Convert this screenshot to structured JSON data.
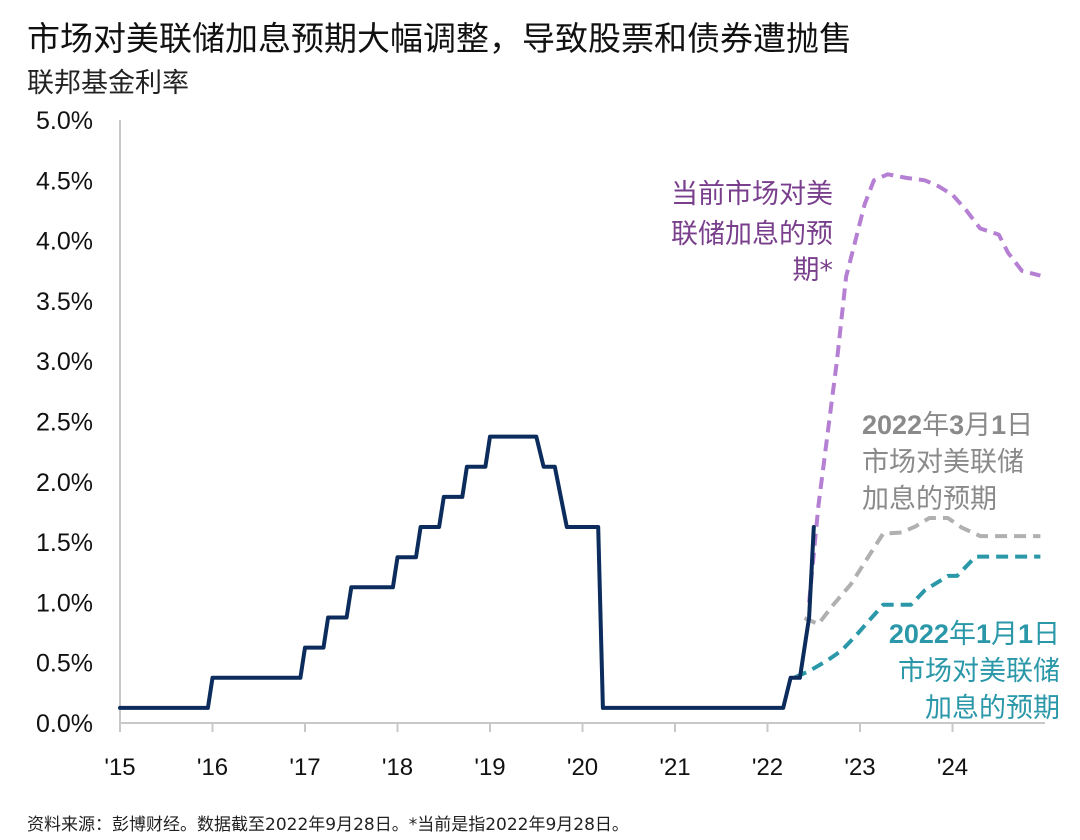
{
  "title": "市场对美联储加息预期大幅调整，导致股票和债券遭抛售",
  "subtitle": "联邦基金利率",
  "footnote": "资料来源：彭博财经。数据截至2022年9月28日。*当前是指2022年9月28日。",
  "colors": {
    "actual": "#0b2c5c",
    "current": "#b57fd3",
    "current_text": "#7a3f8c",
    "mar": "#b0b0b0",
    "mar_text": "#8a8a8a",
    "jan": "#2a98a8",
    "jan_text": "#2a98a8"
  },
  "chart_data": {
    "type": "line",
    "title": "市场对美联储加息预期大幅调整，导致股票和债券遭抛售",
    "ylabel": "联邦基金利率",
    "ylim": [
      0,
      5
    ],
    "xlim": [
      2015,
      2025
    ],
    "y_ticks": [
      "0.0%",
      "0.5%",
      "1.0%",
      "1.5%",
      "2.0%",
      "2.5%",
      "3.0%",
      "3.5%",
      "4.0%",
      "4.5%",
      "5.0%"
    ],
    "y_tick_values": [
      0,
      0.5,
      1,
      1.5,
      2,
      2.5,
      3,
      3.5,
      4,
      4.5,
      5
    ],
    "x_ticks": [
      "'15",
      "'16",
      "'17",
      "'18",
      "'19",
      "'20",
      "'21",
      "'22",
      "'23",
      "'24"
    ],
    "x_tick_values": [
      2015,
      2016,
      2017,
      2018,
      2019,
      2020,
      2021,
      2022,
      2023,
      2024
    ],
    "grid": false,
    "series": [
      {
        "key": "actual",
        "style": "solid",
        "x": [
          2015.0,
          2015.95,
          2016.0,
          2016.95,
          2017.0,
          2017.2,
          2017.25,
          2017.45,
          2017.5,
          2017.95,
          2018.0,
          2018.2,
          2018.25,
          2018.45,
          2018.5,
          2018.7,
          2018.75,
          2018.95,
          2019.0,
          2019.5,
          2019.58,
          2019.7,
          2019.83,
          2020.17,
          2020.22,
          2022.17,
          2022.25,
          2022.35,
          2022.45,
          2022.5
        ],
        "y": [
          0.125,
          0.125,
          0.375,
          0.375,
          0.625,
          0.625,
          0.875,
          0.875,
          1.125,
          1.125,
          1.375,
          1.375,
          1.625,
          1.625,
          1.875,
          1.875,
          2.125,
          2.125,
          2.375,
          2.375,
          2.125,
          2.125,
          1.625,
          1.625,
          0.125,
          0.125,
          0.375,
          0.375,
          0.875,
          1.625
        ]
      },
      {
        "key": "current",
        "name": "当前市场对美联储加息的预期*",
        "style": "dashed",
        "x": [
          2022.45,
          2022.55,
          2022.65,
          2022.75,
          2022.85,
          2022.95,
          2023.05,
          2023.15,
          2023.3,
          2023.5,
          2023.7,
          2023.85,
          2024.0,
          2024.15,
          2024.3,
          2024.5,
          2024.6,
          2024.75,
          2024.95
        ],
        "y": [
          1.0,
          1.8,
          2.4,
          3.0,
          3.7,
          4.0,
          4.3,
          4.5,
          4.55,
          4.52,
          4.5,
          4.45,
          4.38,
          4.25,
          4.1,
          4.05,
          3.9,
          3.75,
          3.71
        ]
      },
      {
        "key": "mar",
        "name": "2022年3月1日市场对美联储加息的预期",
        "style": "dashed",
        "x": [
          2022.4,
          2022.55,
          2022.7,
          2022.9,
          2023.05,
          2023.25,
          2023.45,
          2023.6,
          2023.75,
          2023.95,
          2024.1,
          2024.3,
          2024.6,
          2024.95
        ],
        "y": [
          0.87,
          0.82,
          0.97,
          1.15,
          1.33,
          1.57,
          1.58,
          1.63,
          1.7,
          1.7,
          1.62,
          1.55,
          1.55,
          1.55
        ]
      },
      {
        "key": "jan",
        "name": "2022年1月1日市场对美联储加息的预期",
        "style": "dashed",
        "x": [
          2022.3,
          2022.45,
          2022.65,
          2022.8,
          2022.95,
          2023.1,
          2023.25,
          2023.55,
          2023.7,
          2023.95,
          2024.05,
          2024.25,
          2024.6,
          2024.95
        ],
        "y": [
          0.38,
          0.43,
          0.52,
          0.6,
          0.72,
          0.85,
          0.98,
          0.98,
          1.1,
          1.22,
          1.22,
          1.38,
          1.38,
          1.38
        ]
      }
    ],
    "annotations": {
      "current": [
        "当前市场对美",
        "联储加息的预",
        "期*"
      ],
      "mar": [
        {
          "bold": "2022",
          "rest": "年"
        },
        {
          "bold": "3",
          "rest": "月"
        },
        {
          "bold": "1",
          "rest": "日"
        }
      ],
      "mar_lines": [
        "市场对美联储",
        "加息的预期"
      ],
      "jan": [
        {
          "bold": "2022",
          "rest": "年"
        },
        {
          "bold": "1",
          "rest": "月"
        },
        {
          "bold": "1",
          "rest": "日"
        }
      ],
      "jan_lines": [
        "市场对美联储",
        "加息的预期"
      ]
    }
  }
}
